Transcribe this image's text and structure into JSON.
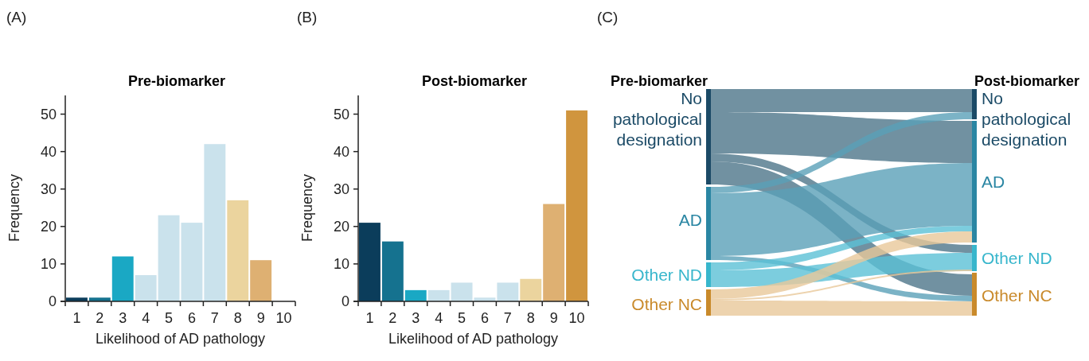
{
  "chart_data": [
    {
      "type": "bar",
      "title": "Pre-biomarker",
      "annotations": [
        "(A)"
      ],
      "xlabel": "Likelihood of AD pathology",
      "ylabel": "Frequency",
      "categories": [
        "1",
        "2",
        "3",
        "4",
        "5",
        "6",
        "7",
        "8",
        "9",
        "10"
      ],
      "values": [
        1,
        1,
        12,
        7,
        23,
        21,
        42,
        27,
        11,
        0
      ],
      "colors": [
        "#0b3d5b",
        "#15728f",
        "#1aa8c4",
        "#cae2ec",
        "#cae2ec",
        "#cae2ec",
        "#cae2ec",
        "#ebd49e",
        "#deb072",
        "#d0953e"
      ],
      "ylim": [
        0,
        55
      ],
      "yticks": [
        0,
        10,
        20,
        30,
        40,
        50
      ]
    },
    {
      "type": "bar",
      "title": "Post-biomarker",
      "annotations": [
        "(B)"
      ],
      "xlabel": "Likelihood of AD pathology",
      "ylabel": "Frequency",
      "categories": [
        "1",
        "2",
        "3",
        "4",
        "5",
        "6",
        "7",
        "8",
        "9",
        "10"
      ],
      "values": [
        21,
        16,
        3,
        3,
        5,
        1,
        5,
        6,
        26,
        51
      ],
      "colors": [
        "#0b3d5b",
        "#15728f",
        "#1aa8c4",
        "#cae2ec",
        "#cae2ec",
        "#cae2ec",
        "#cae2ec",
        "#ebd49e",
        "#deb072",
        "#d0953e"
      ],
      "ylim": [
        0,
        55
      ],
      "yticks": [
        0,
        10,
        20,
        30,
        40,
        50
      ]
    },
    {
      "type": "other",
      "annotations": [
        "(C)",
        "Pre-biomarker",
        "Post-biomarker"
      ],
      "categories": [
        "No pathological designation",
        "AD",
        "Other ND",
        "Other NC"
      ],
      "colors": [
        "#1b4a66",
        "#2a86a3",
        "#38b6cc",
        "#c98a2b"
      ]
    }
  ]
}
